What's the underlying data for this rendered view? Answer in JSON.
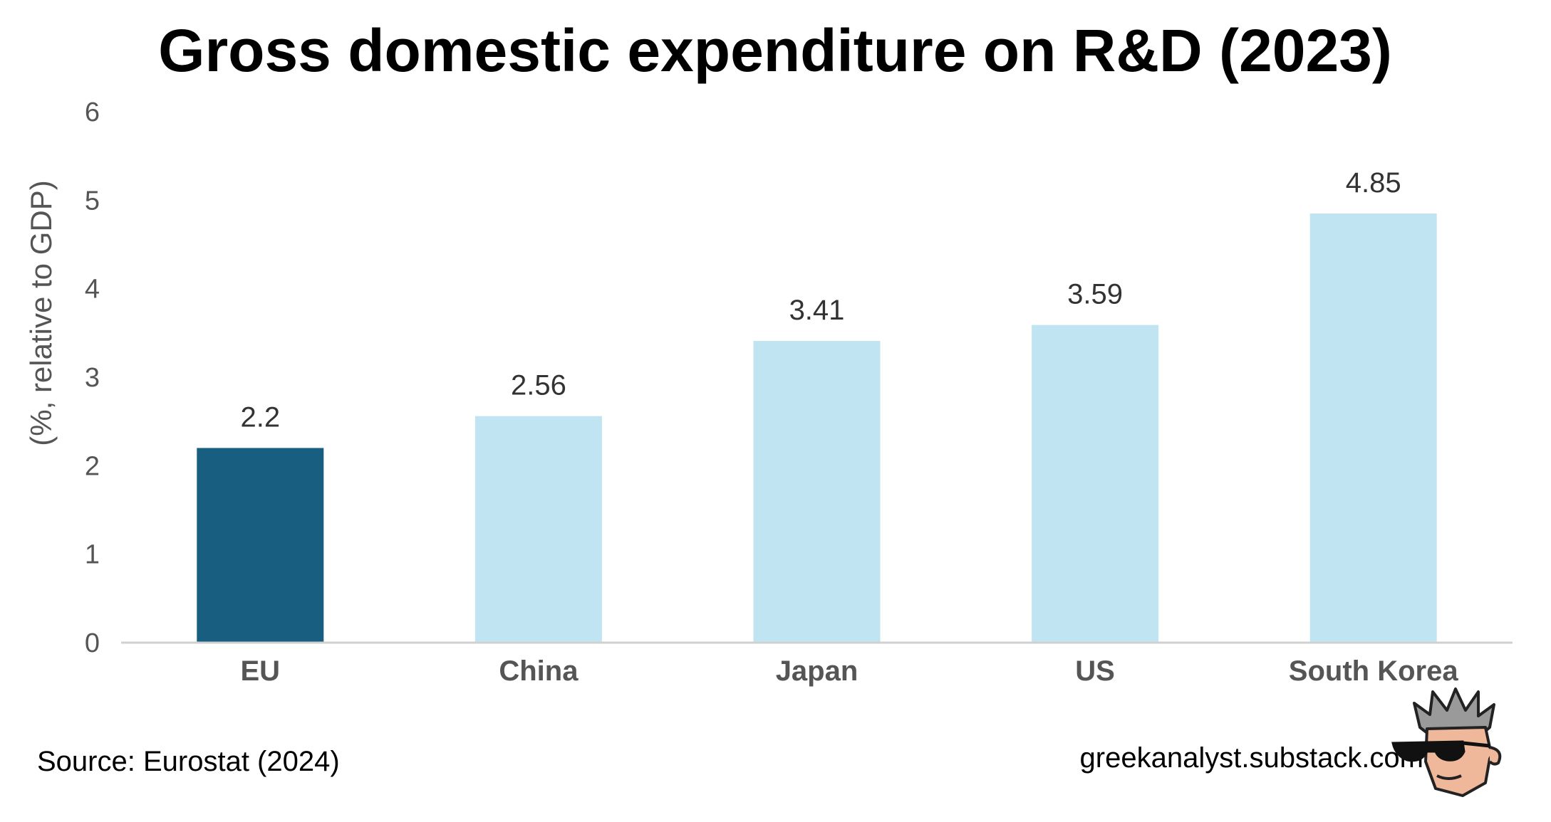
{
  "chart_data": {
    "type": "bar",
    "title": "Gross domestic expenditure on R&D (2023)",
    "xlabel": "",
    "ylabel": "(%, relative to GDP)",
    "ylim": [
      0,
      6
    ],
    "yticks": [
      "0",
      "1",
      "2",
      "3",
      "4",
      "5",
      "6"
    ],
    "grid": false,
    "legend": "none",
    "categories": [
      "EU",
      "China",
      "Japan",
      "US",
      "South Korea"
    ],
    "values": [
      2.2,
      2.56,
      3.41,
      3.59,
      4.85
    ],
    "value_labels": [
      "2.2",
      "2.56",
      "3.41",
      "3.59",
      "4.85"
    ],
    "colors": [
      "#175E80",
      "#C1E4F3",
      "#C1E4F3",
      "#C1E4F3",
      "#C1E4F3"
    ],
    "highlight": "EU"
  },
  "footer": {
    "source": "Source: Eurostat (2024)",
    "website": "greekanalyst.substack.com"
  },
  "logo": {
    "icon": "cartoon-face-sunglasses-icon"
  }
}
